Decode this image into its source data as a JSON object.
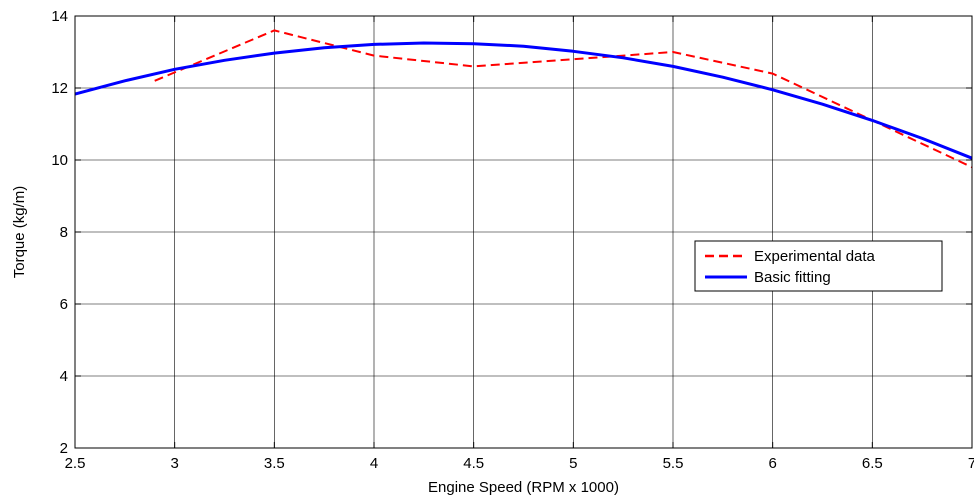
{
  "chart_data": {
    "type": "line",
    "title": "",
    "xlabel": "Engine Speed (RPM x 1000)",
    "ylabel": "Torque (kg/m)",
    "xlim": [
      2.5,
      7
    ],
    "ylim": [
      2,
      14
    ],
    "xticks": [
      2.5,
      3,
      3.5,
      4,
      4.5,
      5,
      5.5,
      6,
      6.5,
      7
    ],
    "xtick_labels": [
      "2.5",
      "3",
      "3.5",
      "4",
      "4.5",
      "5",
      "5.5",
      "6",
      "6.5",
      "7"
    ],
    "yticks": [
      2,
      4,
      6,
      8,
      10,
      12,
      14
    ],
    "ytick_labels": [
      "2",
      "4",
      "6",
      "8",
      "10",
      "12",
      "14"
    ],
    "grid": true,
    "legend_position": "right",
    "series": [
      {
        "name": "Experimental data",
        "style": "dashed",
        "color": "#ff0000",
        "x": [
          2.9,
          3.5,
          4.0,
          4.5,
          5.0,
          5.5,
          6.0,
          7.0
        ],
        "y": [
          12.2,
          13.6,
          12.9,
          12.6,
          12.8,
          13.0,
          12.4,
          9.8
        ]
      },
      {
        "name": "Basic fitting",
        "style": "solid",
        "color": "#0000ff",
        "x": [
          2.5,
          2.75,
          3.0,
          3.25,
          3.5,
          3.75,
          4.0,
          4.25,
          4.5,
          4.75,
          5.0,
          5.25,
          5.5,
          5.75,
          6.0,
          6.25,
          6.5,
          6.75,
          7.0
        ],
        "y": [
          11.83,
          12.2,
          12.52,
          12.77,
          12.97,
          13.12,
          13.21,
          13.25,
          13.23,
          13.16,
          13.02,
          12.84,
          12.6,
          12.3,
          11.95,
          11.55,
          11.1,
          10.6,
          10.05
        ]
      }
    ]
  }
}
